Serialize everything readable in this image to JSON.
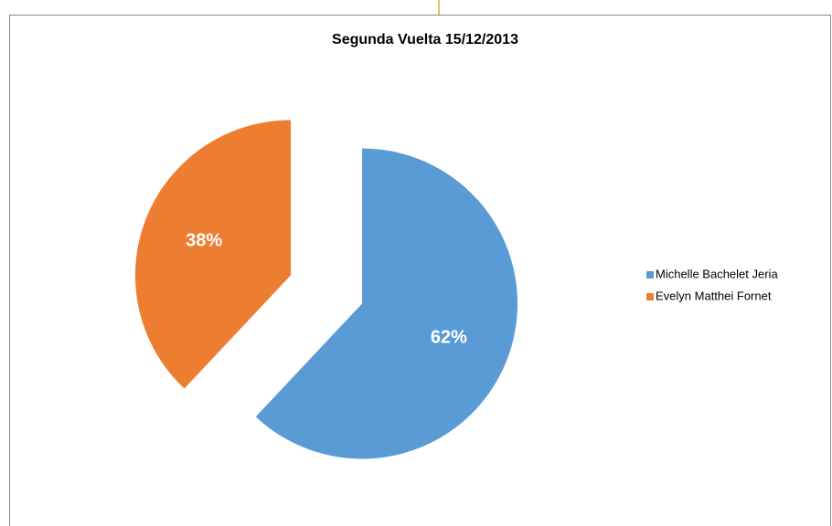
{
  "chart_data": {
    "type": "pie",
    "title": "Segunda Vuelta 15/12/2013",
    "categories": [
      "Michelle Bachelet Jeria",
      "Evelyn Matthei Fornet"
    ],
    "values": [
      62,
      38
    ],
    "value_labels": [
      "62%",
      "38%"
    ],
    "colors": [
      "#5b9bd5",
      "#ed7d31"
    ],
    "legend": "right"
  }
}
